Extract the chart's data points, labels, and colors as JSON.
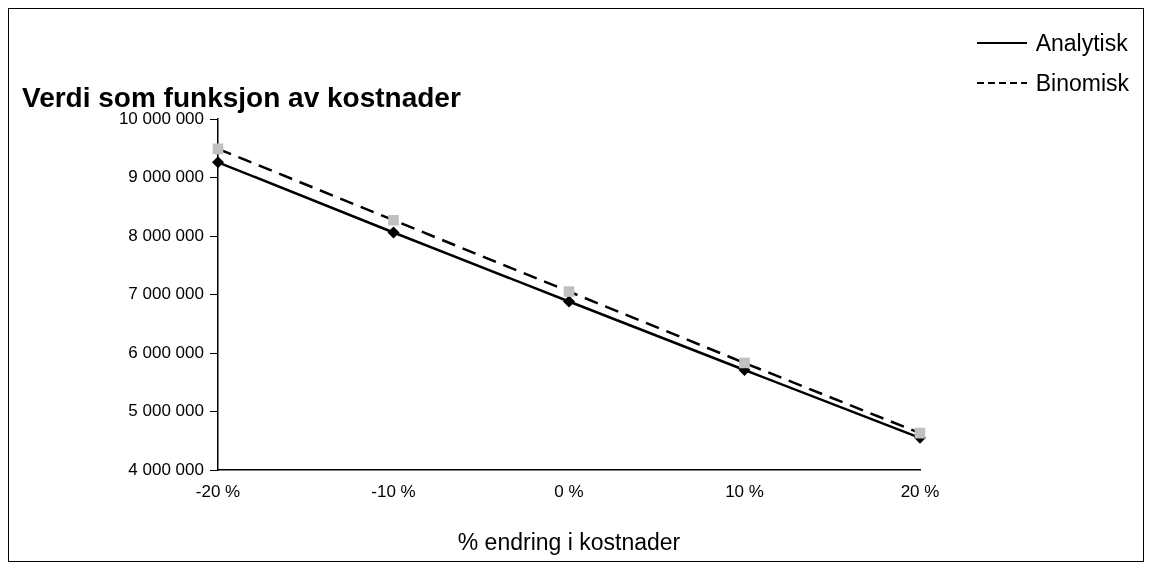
{
  "chart_data": {
    "type": "line",
    "title": "Verdi som funksjon av kostnader",
    "xlabel": "% endring i kostnader",
    "categories": [
      "-20 %",
      "-10 %",
      "0 %",
      "10 %",
      "20 %"
    ],
    "series": [
      {
        "name": "Analytisk",
        "color": "#000000",
        "marker": "diamond",
        "line_style": "solid",
        "colors": [
          "#000000",
          "#000000",
          "#000000",
          "#000000",
          "#000000"
        ],
        "values": [
          9260000,
          8060000,
          6880000,
          5710000,
          4550000
        ]
      },
      {
        "name": "Binomisk",
        "color": "#000000",
        "marker": "square",
        "line_style": "dashed",
        "colors": [
          "#c0c0c0",
          "#c0c0c0",
          "#c0c0c0",
          "#c0c0c0",
          "#c0c0c0"
        ],
        "values": [
          9490000,
          8270000,
          7050000,
          5830000,
          4630000
        ]
      }
    ],
    "ylim": [
      4000000,
      10000000
    ],
    "yticks": [
      {
        "value": 4000000,
        "label": "4 000 000"
      },
      {
        "value": 5000000,
        "label": "5 000 000"
      },
      {
        "value": 6000000,
        "label": "6 000 000"
      },
      {
        "value": 7000000,
        "label": "7 000 000"
      },
      {
        "value": 8000000,
        "label": "8 000 000"
      },
      {
        "value": 9000000,
        "label": "9 000 000"
      },
      {
        "value": 10000000,
        "label": "10 000 000"
      }
    ],
    "grid": false,
    "legend": "top right"
  }
}
